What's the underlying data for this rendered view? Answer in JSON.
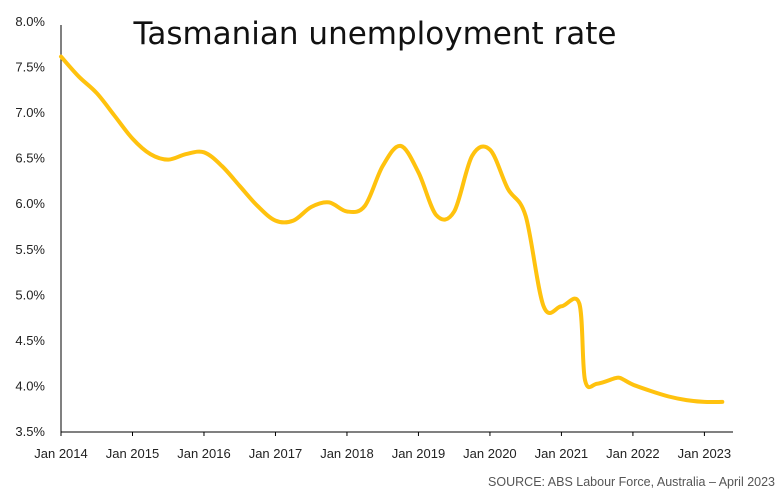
{
  "chart_data": {
    "type": "line",
    "title": "Tasmanian unemployment rate",
    "source": "SOURCE: ABS Labour Force, Australia – April 2023",
    "xlabel": "",
    "ylabel": "",
    "ylim": [
      3.5,
      8.0
    ],
    "yticks": [
      3.5,
      4.0,
      4.5,
      5.0,
      5.5,
      6.0,
      6.5,
      7.0,
      7.5,
      8.0
    ],
    "ytick_labels": [
      "3.5%",
      "4.0%",
      "4.5%",
      "5.0%",
      "5.5%",
      "6.0%",
      "6.5%",
      "7.0%",
      "7.5%",
      "8.0%"
    ],
    "xtick_labels": [
      "Jan 2014",
      "Jan 2015",
      "Jan 2016",
      "Jan 2017",
      "Jan 2018",
      "Jan 2019",
      "Jan 2020",
      "Jan 2021",
      "Jan 2022",
      "Jan 2023"
    ],
    "grid": false,
    "colors": {
      "line": "#FFC20E",
      "axis": "#000000"
    },
    "series": [
      {
        "x": [
          2014.0,
          2014.25,
          2014.5,
          2014.75,
          2015.0,
          2015.25,
          2015.5,
          2015.75,
          2016.0,
          2016.25,
          2016.5,
          2016.75,
          2017.0,
          2017.25,
          2017.5,
          2017.75,
          2018.0,
          2018.25,
          2018.5,
          2018.75,
          2019.0,
          2019.25,
          2019.5,
          2019.75,
          2020.0,
          2020.25,
          2020.5,
          2020.75,
          2021.0,
          2021.25,
          2021.33,
          2021.5,
          2021.75,
          2021.83,
          2022.0,
          2022.25,
          2022.5,
          2022.75,
          2023.0,
          2023.25
        ],
        "values": [
          7.62,
          7.4,
          7.22,
          6.97,
          6.72,
          6.55,
          6.49,
          6.55,
          6.57,
          6.42,
          6.2,
          5.98,
          5.82,
          5.82,
          5.97,
          6.02,
          5.92,
          5.98,
          6.42,
          6.64,
          6.35,
          5.88,
          5.92,
          6.53,
          6.6,
          6.17,
          5.87,
          4.88,
          4.88,
          4.91,
          4.07,
          4.03,
          4.09,
          4.09,
          4.02,
          3.95,
          3.89,
          3.85,
          3.83,
          3.83
        ]
      }
    ]
  }
}
